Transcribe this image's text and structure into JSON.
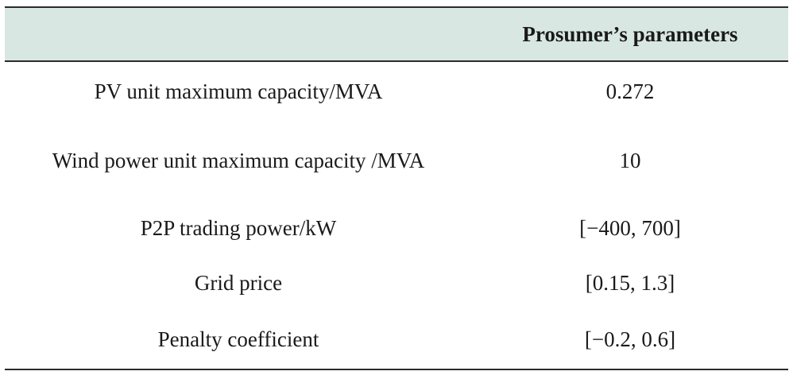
{
  "table": {
    "headers": [
      "",
      "Prosumer’s parameters"
    ],
    "rows": [
      {
        "parameter": "PV unit maximum capacity/MVA",
        "value": "0.272"
      },
      {
        "parameter": "Wind power unit maximum capacity /MVA",
        "value": "10"
      },
      {
        "parameter": "P2P trading power/kW",
        "value": "[−400, 700]"
      },
      {
        "parameter": "Grid price",
        "value": "[0.15, 1.3]"
      },
      {
        "parameter": "Penalty coefficient",
        "value": "[−0.2, 0.6]"
      }
    ]
  }
}
